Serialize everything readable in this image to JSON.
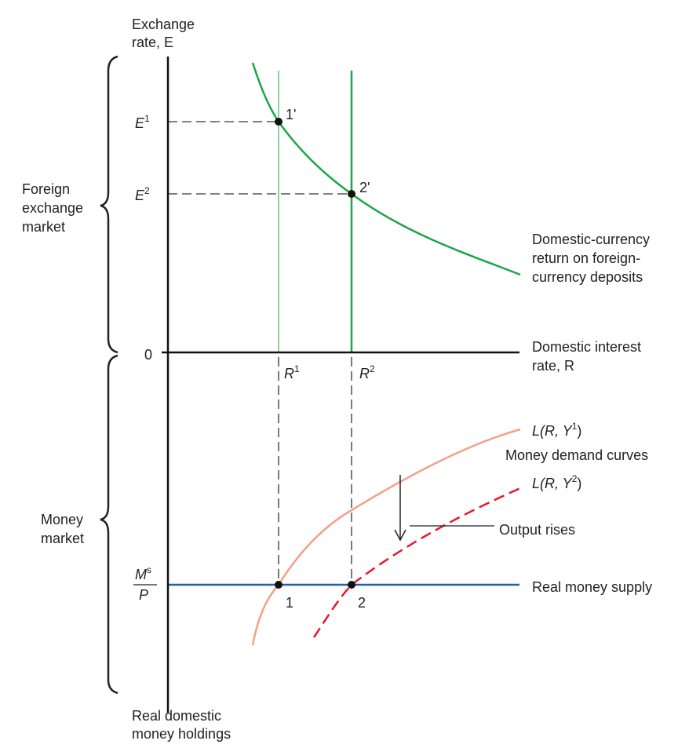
{
  "y_axis_label": [
    "Exchange",
    "rate, E"
  ],
  "x_axis_label": [
    "Domestic interest",
    "rate, R"
  ],
  "bottom_label": [
    "Real domestic",
    "money holdings"
  ],
  "brace_top_label": [
    "Foreign",
    "exchange",
    "market"
  ],
  "brace_bottom_label": [
    "Money",
    "market"
  ],
  "e1": {
    "base": "E",
    "sup": "1"
  },
  "e2": {
    "base": "E",
    "sup": "2"
  },
  "origin": "0",
  "point_1p": "1'",
  "point_2p": "2'",
  "return_curve_label": [
    "Domestic-currency",
    "return on foreign-",
    "currency deposits"
  ],
  "r1": {
    "base": "R",
    "sup": "1"
  },
  "r2": {
    "base": "R",
    "sup": "2"
  },
  "l1": {
    "prefix": "L(R, Y",
    "sup": "1",
    "suffix": ")"
  },
  "l2": {
    "prefix": "L(R, Y",
    "sup": "2",
    "suffix": ")"
  },
  "money_demand_label": "Money demand curves",
  "output_label": "Output rises",
  "ms": {
    "numerator": "M",
    "sup": "s",
    "denominator": "P"
  },
  "point_1": "1",
  "point_2": "2",
  "money_supply_label": "Real money supply"
}
